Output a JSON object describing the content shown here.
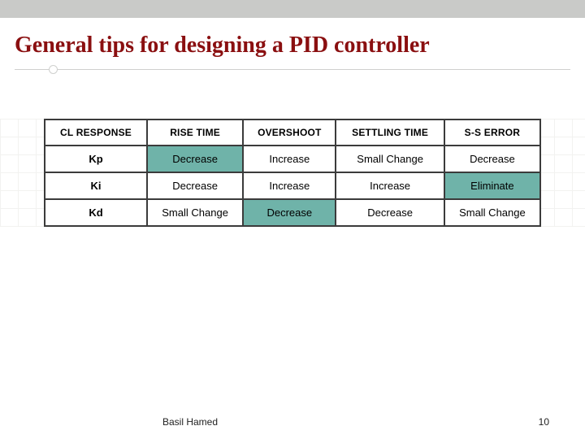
{
  "slide": {
    "title": "General tips for designing a PID controller",
    "title_color": "#8a0f10",
    "title_fontsize": 28,
    "rule_color": "#cfd0ce",
    "grid_color": "#f1f1ef",
    "topbar_color": "#c9cac8"
  },
  "table": {
    "type": "table",
    "border_color": "#3b3b3b",
    "highlight_color": "#6fb3a9",
    "header_fontsize": 12,
    "cell_fontsize": 13,
    "columns": [
      "CL RESPONSE",
      "RISE TIME",
      "OVERSHOOT",
      "SETTLING TIME",
      "S-S ERROR"
    ],
    "rows": [
      {
        "label": "Kp",
        "cells": [
          "Decrease",
          "Increase",
          "Small Change",
          "Decrease"
        ],
        "highlight": [
          true,
          false,
          false,
          false
        ]
      },
      {
        "label": "Ki",
        "cells": [
          "Decrease",
          "Increase",
          "Increase",
          "Eliminate"
        ],
        "highlight": [
          false,
          false,
          false,
          true
        ]
      },
      {
        "label": "Kd",
        "cells": [
          "Small Change",
          "Decrease",
          "Decrease",
          "Small Change"
        ],
        "highlight": [
          false,
          true,
          false,
          false
        ]
      }
    ]
  },
  "footer": {
    "author": "Basil Hamed",
    "page": "10"
  }
}
